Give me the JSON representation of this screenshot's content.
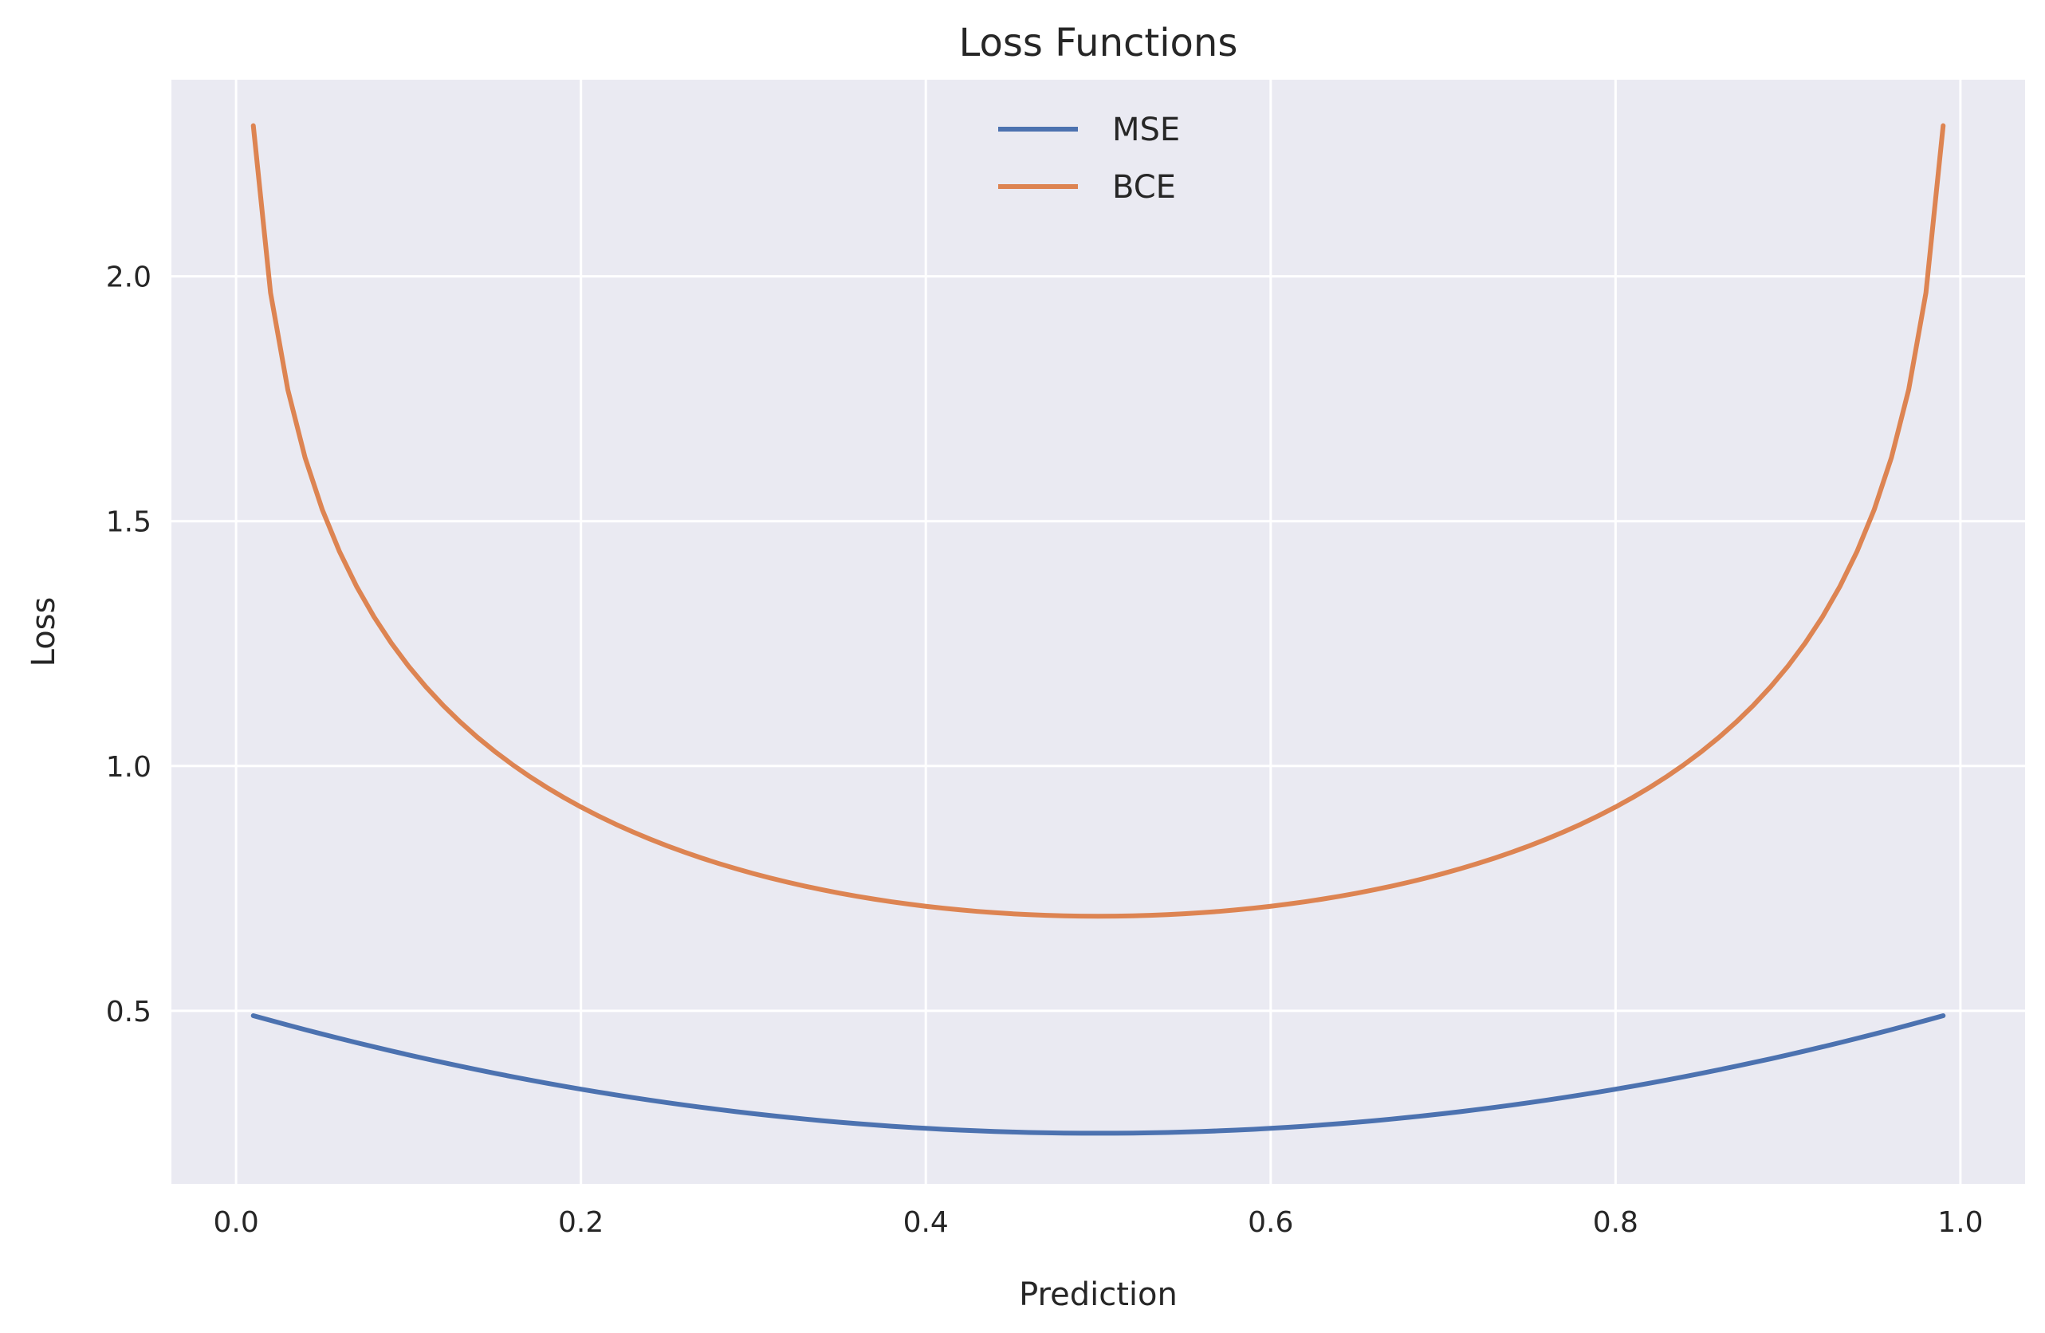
{
  "chart_data": {
    "type": "line",
    "title": "Loss Functions",
    "xlabel": "Prediction",
    "ylabel": "Loss",
    "xlim": [
      -0.0375,
      1.0375
    ],
    "ylim": [
      0.1465,
      2.4015
    ],
    "xticks": [
      0.0,
      0.2,
      0.4,
      0.6,
      0.8,
      1.0
    ],
    "xtick_labels": [
      "0.0",
      "0.2",
      "0.4",
      "0.6",
      "0.8",
      "1.0"
    ],
    "yticks": [
      0.5,
      1.0,
      1.5,
      2.0
    ],
    "ytick_labels": [
      "0.5",
      "1.0",
      "1.5",
      "2.0"
    ],
    "grid": true,
    "legend": "upper-center",
    "background": "#eaeaf2",
    "grid_color": "#ffffff",
    "x": [
      0.01,
      0.02,
      0.03,
      0.04,
      0.05,
      0.06,
      0.07,
      0.08,
      0.09,
      0.1,
      0.12,
      0.14,
      0.16,
      0.18,
      0.2,
      0.25,
      0.3,
      0.35,
      0.4,
      0.45,
      0.5,
      0.55,
      0.6,
      0.65,
      0.7,
      0.75,
      0.8,
      0.82,
      0.84,
      0.86,
      0.88,
      0.9,
      0.91,
      0.92,
      0.93,
      0.94,
      0.95,
      0.96,
      0.97,
      0.98,
      0.99
    ],
    "series": [
      {
        "name": "MSE",
        "color": "#4c72b0",
        "values": [
          0.4901,
          0.4804,
          0.4709,
          0.4616,
          0.4525,
          0.4436,
          0.4349,
          0.4264,
          0.4181,
          0.41,
          0.3944,
          0.3796,
          0.3656,
          0.3524,
          0.34,
          0.3125,
          0.29,
          0.2725,
          0.26,
          0.2525,
          0.25,
          0.2525,
          0.26,
          0.2725,
          0.29,
          0.3125,
          0.34,
          0.3524,
          0.3656,
          0.3796,
          0.3944,
          0.41,
          0.4181,
          0.4264,
          0.4349,
          0.4436,
          0.4525,
          0.4616,
          0.4709,
          0.4804,
          0.4901
        ]
      },
      {
        "name": "BCE",
        "color": "#dd8452",
        "values": [
          2.3126,
          1.972,
          1.7729,
          1.6318,
          1.5223,
          1.4329,
          1.3574,
          1.292,
          1.2344,
          1.183,
          1.0949,
          1.0214,
          0.9585,
          0.9039,
          0.8557,
          0.752,
          0.6702,
          0.6057,
          0.555,
          0.5174,
          0.6931,
          0.5174,
          0.555,
          0.6057,
          0.6702,
          0.752,
          0.8557,
          0.9039,
          0.9585,
          1.0214,
          1.0949,
          1.183,
          1.2344,
          1.292,
          1.3574,
          1.4329,
          1.5223,
          1.6318,
          1.7729,
          1.972,
          2.3126
        ]
      }
    ]
  }
}
